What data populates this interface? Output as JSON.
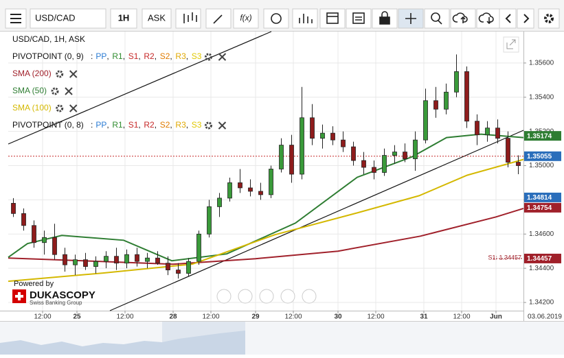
{
  "toolbar": {
    "symbol": "USD/CAD",
    "timeframe": "1H",
    "side": "ASK"
  },
  "chart_data": {
    "type": "candlestick",
    "title": "USD/CAD, 1H, ASK",
    "indicators": [
      {
        "label": "PIVOTPOINT (0, 9)",
        "separator": ":",
        "items": [
          "PP",
          "R1",
          "S1",
          "R2",
          "S2",
          "R3",
          "S3"
        ],
        "colors": [
          "#2a7bd4",
          "#2e8b2e",
          "#c62828",
          "#c62828",
          "#e07b00",
          "#e0a800",
          "#e0c800"
        ]
      },
      {
        "label": "PIVOTPOINT (0, 8)",
        "separator": ":",
        "items": [
          "PP",
          "R1",
          "S1",
          "R2",
          "S2",
          "R3",
          "S3"
        ],
        "colors": [
          "#2a7bd4",
          "#2e8b2e",
          "#c62828",
          "#c62828",
          "#e07b00",
          "#e0a800",
          "#e0c800"
        ]
      }
    ],
    "x": [
      1.5,
      4.5,
      7.5,
      10.5,
      13.5,
      16.5,
      19.5,
      22.5,
      25.5,
      28.5,
      31.5,
      34.5,
      37.5,
      40.5,
      43.5,
      46.5,
      49.5,
      52.5,
      55.5,
      58.5,
      61.5,
      64.5,
      67.5,
      70.5,
      73.5,
      76.5,
      79.5,
      82.5,
      85.5,
      88.5,
      91.5,
      94.5,
      97.5,
      100.5,
      103.5,
      106.5,
      109.5,
      112.5,
      115.5,
      118.5,
      121.5,
      124.5,
      127.5,
      130.5,
      133.5,
      136.5,
      139.5,
      142.5,
      145.5,
      148.5
    ],
    "open": [
      1.3478,
      1.3472,
      1.3465,
      1.3455,
      1.3458,
      1.3448,
      1.3442,
      1.3445,
      1.3441,
      1.3444,
      1.3447,
      1.3443,
      1.3448,
      1.3444,
      1.3446,
      1.3443,
      1.3439,
      1.3437,
      1.3444,
      1.346,
      1.3476,
      1.3481,
      1.349,
      1.3487,
      1.3485,
      1.3483,
      1.3498,
      1.3512,
      1.3495,
      1.3528,
      1.3516,
      1.3519,
      1.3515,
      1.3511,
      1.3503,
      1.3499,
      1.3496,
      1.3506,
      1.3508,
      1.3504,
      1.3515,
      1.3538,
      1.3533,
      1.3543,
      1.3555,
      1.3526,
      1.3518,
      1.3522,
      1.3516,
      1.3502
    ],
    "high": [
      1.3481,
      1.3475,
      1.3468,
      1.3462,
      1.3466,
      1.3452,
      1.3448,
      1.3449,
      1.3447,
      1.345,
      1.3452,
      1.3451,
      1.3452,
      1.3449,
      1.345,
      1.3447,
      1.3443,
      1.3446,
      1.3462,
      1.348,
      1.3484,
      1.3493,
      1.3498,
      1.3492,
      1.349,
      1.35,
      1.3516,
      1.3518,
      1.3546,
      1.3536,
      1.3524,
      1.3523,
      1.352,
      1.3514,
      1.3508,
      1.3503,
      1.351,
      1.3512,
      1.3513,
      1.352,
      1.3545,
      1.3546,
      1.3548,
      1.3565,
      1.3558,
      1.353,
      1.3526,
      1.3527,
      1.352,
      1.3506
    ],
    "low": [
      1.347,
      1.3462,
      1.3452,
      1.3448,
      1.3445,
      1.3438,
      1.3436,
      1.3439,
      1.3437,
      1.344,
      1.3439,
      1.344,
      1.3441,
      1.344,
      1.3442,
      1.3436,
      1.3434,
      1.3435,
      1.3442,
      1.3458,
      1.347,
      1.3479,
      1.3484,
      1.3482,
      1.348,
      1.3481,
      1.3496,
      1.349,
      1.3492,
      1.3512,
      1.351,
      1.3512,
      1.3508,
      1.35,
      1.3495,
      1.3492,
      1.3494,
      1.3501,
      1.3502,
      1.3497,
      1.3513,
      1.3528,
      1.353,
      1.354,
      1.3522,
      1.3512,
      1.3514,
      1.3513,
      1.3499,
      1.3495
    ],
    "close": [
      1.3472,
      1.3465,
      1.3455,
      1.3458,
      1.3448,
      1.3442,
      1.3445,
      1.3441,
      1.3444,
      1.3447,
      1.3443,
      1.3448,
      1.3444,
      1.3446,
      1.3443,
      1.3439,
      1.3437,
      1.3444,
      1.346,
      1.3476,
      1.3481,
      1.349,
      1.3487,
      1.3485,
      1.3483,
      1.3498,
      1.3512,
      1.3495,
      1.3528,
      1.3516,
      1.3519,
      1.3515,
      1.3511,
      1.3503,
      1.3499,
      1.3496,
      1.3506,
      1.3508,
      1.3504,
      1.3515,
      1.3538,
      1.3533,
      1.3543,
      1.3555,
      1.3526,
      1.3518,
      1.3522,
      1.3516,
      1.3502,
      1.35
    ],
    "up_color": "#3a9a3a",
    "down_color": "#8e1c1c",
    "series": [
      {
        "name": "SMA (200)",
        "color": "#a0202a",
        "x": [
          0,
          48,
          72,
          96,
          120,
          142,
          150
        ],
        "values": [
          1.3446,
          1.34424,
          1.34456,
          1.345,
          1.34588,
          1.347,
          1.3475
        ]
      },
      {
        "name": "SMA (50)",
        "color": "#2e7d32",
        "x": [
          0,
          5.6,
          15.6,
          33.6,
          47.6,
          63.6,
          83.6,
          101.6,
          117.6,
          127.6,
          137.6,
          150
        ],
        "values": [
          1.34464,
          1.34544,
          1.34592,
          1.34564,
          1.34444,
          1.34484,
          1.34664,
          1.34932,
          1.35052,
          1.35164,
          1.35184,
          1.35164
        ]
      },
      {
        "name": "SMA (100)",
        "color": "#d4b800",
        "x": [
          0,
          27.6,
          53.6,
          77.6,
          101.6,
          119.6,
          133.6,
          150
        ],
        "values": [
          1.34324,
          1.34372,
          1.34424,
          1.34596,
          1.34724,
          1.34824,
          1.34944,
          1.35036
        ]
      }
    ],
    "price_labels": [
      {
        "value": 1.35174,
        "label": "1.35174",
        "color": "#2e7d32"
      },
      {
        "value": 1.35055,
        "label": "1.35055",
        "color": "#2a6ebb"
      },
      {
        "value": 1.34814,
        "label": "1.34814",
        "color": "#2a6ebb"
      },
      {
        "value": 1.34754,
        "label": "1.34754",
        "color": "#a0202a"
      },
      {
        "value": 1.34457,
        "label": "1.34457",
        "color": "#a0202a"
      }
    ],
    "current_price": 1.35055,
    "pivot_annotation": {
      "value": 1.34457,
      "label": "S1: 1.34457"
    },
    "ylim": [
      1.34152,
      1.35784
    ],
    "yticks": [
      {
        "value": 1.356,
        "label": "1.35600"
      },
      {
        "value": 1.354,
        "label": "1.35400"
      },
      {
        "value": 1.352,
        "label": "1.35200"
      },
      {
        "value": 1.35,
        "label": "1.35000"
      },
      {
        "value": 1.348,
        "label": "1.34800"
      },
      {
        "value": 1.346,
        "label": "1.34600"
      },
      {
        "value": 1.344,
        "label": "1.34400"
      },
      {
        "value": 1.342,
        "label": "1.34200"
      }
    ],
    "xlim": [
      0,
      150
    ],
    "xticks": [
      {
        "value": 10,
        "label": "12:00"
      },
      {
        "value": 20,
        "label": "25"
      },
      {
        "value": 34,
        "label": "12:00"
      },
      {
        "value": 48,
        "label": "28"
      },
      {
        "value": 59,
        "label": "12:00"
      },
      {
        "value": 72,
        "label": "29"
      },
      {
        "value": 83,
        "label": "12:00"
      },
      {
        "value": 96,
        "label": "30"
      },
      {
        "value": 107,
        "label": "12:00"
      },
      {
        "value": 121,
        "label": "31"
      },
      {
        "value": 132,
        "label": "12:00"
      },
      {
        "value": 142,
        "label": "Jun"
      }
    ],
    "grid": true,
    "date": "03.06.2019"
  },
  "branding": {
    "powered": "Powered by",
    "name": "DUKASCOPY",
    "tagline": "Swiss Banking Group"
  }
}
